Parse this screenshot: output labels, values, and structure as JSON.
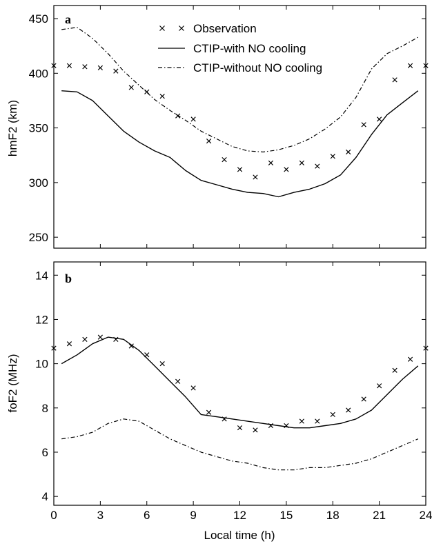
{
  "chart_data": [
    {
      "type": "line",
      "panel_label": "a",
      "xlabel": "",
      "ylabel": "hmF2 (km)",
      "xlim": [
        0,
        24
      ],
      "ylim": [
        240,
        462
      ],
      "xticks": [
        0,
        3,
        6,
        9,
        12,
        15,
        18,
        21,
        24
      ],
      "yticks": [
        250,
        300,
        350,
        400,
        450
      ],
      "legend": [
        "Observation",
        "CTIP-with NO cooling",
        "CTIP-without NO cooling"
      ],
      "series": [
        {
          "name": "Observation",
          "style": "markers",
          "x": [
            0,
            1,
            2,
            3,
            4,
            5,
            6,
            7,
            8,
            9,
            10,
            11,
            12,
            13,
            14,
            15,
            16,
            17,
            18,
            19,
            20,
            21,
            22,
            23,
            24
          ],
          "y": [
            407,
            407,
            406,
            405,
            402,
            387,
            383,
            379,
            361,
            358,
            338,
            321,
            312,
            305,
            318,
            312,
            318,
            315,
            324,
            328,
            353,
            358,
            394,
            407,
            407
          ]
        },
        {
          "name": "CTIP-with NO cooling",
          "style": "solid",
          "x": [
            0.5,
            1.5,
            2.5,
            3.5,
            4.5,
            5.5,
            6.5,
            7.5,
            8.5,
            9.5,
            10.5,
            11.5,
            12.5,
            13.5,
            14.5,
            15.5,
            16.5,
            17.5,
            18.5,
            19.5,
            20.5,
            21.5,
            22.5,
            23.5
          ],
          "y": [
            384,
            383,
            375,
            361,
            347,
            337,
            329,
            323,
            311,
            302,
            298,
            294,
            291,
            290,
            287,
            291,
            294,
            299,
            307,
            323,
            344,
            362,
            373,
            384
          ]
        },
        {
          "name": "CTIP-without NO cooling",
          "style": "dashdot",
          "x": [
            0.5,
            1.5,
            2.5,
            3.5,
            4.5,
            5.5,
            6.5,
            7.5,
            8.5,
            9.5,
            10.5,
            11.5,
            12.5,
            13.5,
            14.5,
            15.5,
            16.5,
            17.5,
            18.5,
            19.5,
            20.5,
            21.5,
            22.5,
            23.5
          ],
          "y": [
            440,
            442,
            432,
            418,
            402,
            389,
            376,
            366,
            357,
            347,
            340,
            333,
            329,
            328,
            330,
            334,
            340,
            349,
            360,
            378,
            404,
            418,
            425,
            433
          ]
        }
      ]
    },
    {
      "type": "line",
      "panel_label": "b",
      "xlabel": "Local time (h)",
      "ylabel": "foF2 (MHz)",
      "xlim": [
        0,
        24
      ],
      "ylim": [
        3.6,
        14.6
      ],
      "xticks": [
        0,
        3,
        6,
        9,
        12,
        15,
        18,
        21,
        24
      ],
      "yticks": [
        4,
        6,
        8,
        10,
        12,
        14
      ],
      "series": [
        {
          "name": "Observation",
          "style": "markers",
          "x": [
            0,
            1,
            2,
            3,
            4,
            5,
            6,
            7,
            8,
            9,
            10,
            11,
            12,
            13,
            14,
            15,
            16,
            17,
            18,
            19,
            20,
            21,
            22,
            23,
            24
          ],
          "y": [
            10.7,
            10.9,
            11.1,
            11.2,
            11.1,
            10.8,
            10.4,
            10.0,
            9.2,
            8.9,
            7.8,
            7.5,
            7.1,
            7.0,
            7.2,
            7.2,
            7.4,
            7.4,
            7.7,
            7.9,
            8.4,
            9.0,
            9.7,
            10.2,
            10.7
          ]
        },
        {
          "name": "CTIP-with NO cooling",
          "style": "solid",
          "x": [
            0.5,
            1.5,
            2.5,
            3.5,
            4.5,
            5.5,
            6.5,
            7.5,
            8.5,
            9.5,
            10.5,
            11.5,
            12.5,
            13.5,
            14.5,
            15.5,
            16.5,
            17.5,
            18.5,
            19.5,
            20.5,
            21.5,
            22.5,
            23.5
          ],
          "y": [
            10.0,
            10.4,
            10.9,
            11.2,
            11.1,
            10.6,
            9.9,
            9.2,
            8.5,
            7.7,
            7.6,
            7.5,
            7.4,
            7.3,
            7.2,
            7.1,
            7.1,
            7.2,
            7.3,
            7.5,
            7.9,
            8.6,
            9.3,
            9.9
          ]
        },
        {
          "name": "CTIP-without NO cooling",
          "style": "dashdot",
          "x": [
            0.5,
            1.5,
            2.5,
            3.5,
            4.5,
            5.5,
            6.5,
            7.5,
            8.5,
            9.5,
            10.5,
            11.5,
            12.5,
            13.5,
            14.5,
            15.5,
            16.5,
            17.5,
            18.5,
            19.5,
            20.5,
            21.5,
            22.5,
            23.5
          ],
          "y": [
            6.6,
            6.7,
            6.9,
            7.3,
            7.5,
            7.4,
            7.0,
            6.6,
            6.3,
            6.0,
            5.8,
            5.6,
            5.5,
            5.3,
            5.2,
            5.2,
            5.3,
            5.3,
            5.4,
            5.5,
            5.7,
            6.0,
            6.3,
            6.6
          ]
        }
      ]
    }
  ]
}
